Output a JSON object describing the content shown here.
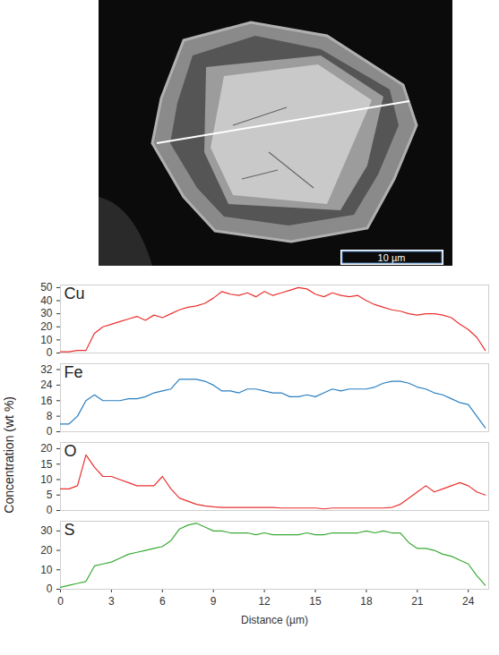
{
  "image": {
    "scale_bar_label": "10 µm"
  },
  "chart_data": {
    "type": "line",
    "xlabel": "Distance (µm)",
    "ylabel": "Concentration (wt %)",
    "xlim": [
      0,
      25.2
    ],
    "xticks": [
      0,
      3,
      6,
      9,
      12,
      15,
      18,
      21,
      24
    ],
    "x": [
      0,
      0.5,
      1,
      1.5,
      2,
      2.5,
      3,
      3.5,
      4,
      4.5,
      5,
      5.5,
      6,
      6.5,
      7,
      7.5,
      8,
      8.5,
      9,
      9.5,
      10,
      10.5,
      11,
      11.5,
      12,
      12.5,
      13,
      13.5,
      14,
      14.5,
      15,
      15.5,
      16,
      16.5,
      17,
      17.5,
      18,
      18.5,
      19,
      19.5,
      20,
      20.5,
      21,
      21.5,
      22,
      22.5,
      23,
      23.5,
      24,
      24.5,
      25
    ],
    "series": [
      {
        "name": "Cu",
        "color": "#e8312f",
        "ylim": [
          0,
          52
        ],
        "yticks": [
          0,
          10,
          20,
          30,
          40,
          50
        ],
        "values": [
          1,
          1,
          2,
          2,
          15,
          20,
          22,
          24,
          26,
          28,
          25,
          29,
          27,
          30,
          33,
          35,
          36,
          38,
          42,
          47,
          45,
          44,
          46,
          43,
          47,
          44,
          46,
          48,
          50,
          49,
          45,
          43,
          46,
          44,
          43,
          44,
          40,
          37,
          35,
          33,
          32,
          30,
          29,
          30,
          30,
          29,
          27,
          22,
          18,
          12,
          2
        ]
      },
      {
        "name": "Fe",
        "color": "#2a7fc1",
        "ylim": [
          0,
          35
        ],
        "yticks": [
          0,
          8,
          16,
          24,
          32
        ],
        "values": [
          4,
          4,
          8,
          16,
          19,
          16,
          16,
          16,
          17,
          17,
          18,
          20,
          21,
          22,
          27,
          27,
          27,
          26,
          24,
          21,
          21,
          20,
          22,
          22,
          21,
          20,
          20,
          18,
          18,
          19,
          18,
          20,
          22,
          21,
          22,
          22,
          22,
          23,
          25,
          26,
          26,
          25,
          23,
          22,
          20,
          19,
          17,
          15,
          14,
          8,
          2
        ]
      },
      {
        "name": "O",
        "color": "#e8312f",
        "ylim": [
          0,
          22
        ],
        "yticks": [
          0,
          5,
          10,
          15,
          20
        ],
        "values": [
          7,
          7,
          8,
          18,
          14,
          11,
          11,
          10,
          9,
          8,
          8,
          8,
          11,
          7,
          4,
          3,
          2,
          1.5,
          1.2,
          1,
          1,
          1,
          1,
          1,
          1,
          1,
          0.8,
          0.8,
          0.8,
          0.8,
          0.8,
          0.5,
          0.8,
          0.8,
          0.8,
          0.8,
          0.8,
          0.8,
          0.8,
          1,
          2,
          4,
          6,
          8,
          6,
          7,
          8,
          9,
          8,
          6,
          5
        ]
      },
      {
        "name": "S",
        "color": "#3aaa35",
        "ylim": [
          0,
          35
        ],
        "yticks": [
          0,
          10,
          20,
          30
        ],
        "values": [
          1,
          2,
          3,
          4,
          12,
          13,
          14,
          16,
          18,
          19,
          20,
          21,
          22,
          25,
          31,
          33,
          34,
          32,
          30,
          30,
          29,
          29,
          29,
          28,
          29,
          28,
          28,
          28,
          28,
          29,
          28,
          28,
          29,
          29,
          29,
          29,
          30,
          29,
          30,
          29,
          29,
          24,
          21,
          21,
          20,
          18,
          17,
          15,
          13,
          7,
          2
        ]
      }
    ]
  }
}
